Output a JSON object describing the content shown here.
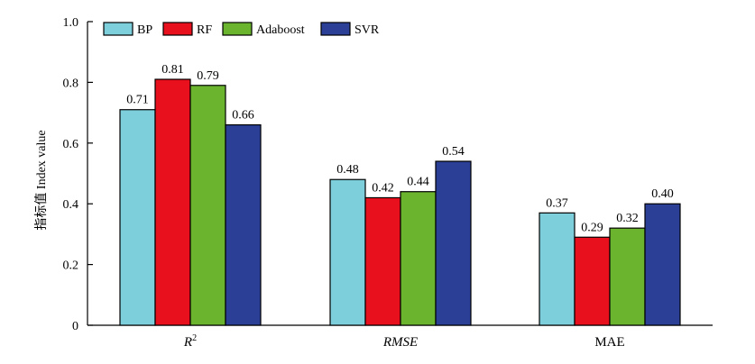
{
  "chart_data": {
    "type": "bar",
    "ylabel": "指标值 Index value",
    "ylim": [
      0,
      1.0
    ],
    "yticks": [
      "0",
      "0.2",
      "0.4",
      "0.6",
      "0.8",
      "1.0"
    ],
    "categories": [
      {
        "base": "R",
        "sup": "2",
        "italic": true
      },
      {
        "base": "RMSE",
        "sup": "",
        "italic": true
      },
      {
        "base": "MAE",
        "sup": "",
        "italic": false
      }
    ],
    "series": [
      {
        "name": "BP",
        "color": "#7ecfdc",
        "values": [
          0.71,
          0.48,
          0.37
        ],
        "labels": [
          "0.71",
          "0.48",
          "0.37"
        ]
      },
      {
        "name": "RF",
        "color": "#e8101c",
        "values": [
          0.81,
          0.42,
          0.29
        ],
        "labels": [
          "0.81",
          "0.42",
          "0.29"
        ]
      },
      {
        "name": "Adaboost",
        "color": "#6ab42e",
        "values": [
          0.79,
          0.44,
          0.32
        ],
        "labels": [
          "0.79",
          "0.44",
          "0.32"
        ]
      },
      {
        "name": "SVR",
        "color": "#2a3f95",
        "values": [
          0.66,
          0.54,
          0.4
        ],
        "labels": [
          "0.66",
          "0.54",
          "0.40"
        ]
      }
    ],
    "legend": "top-left",
    "grid": false
  }
}
